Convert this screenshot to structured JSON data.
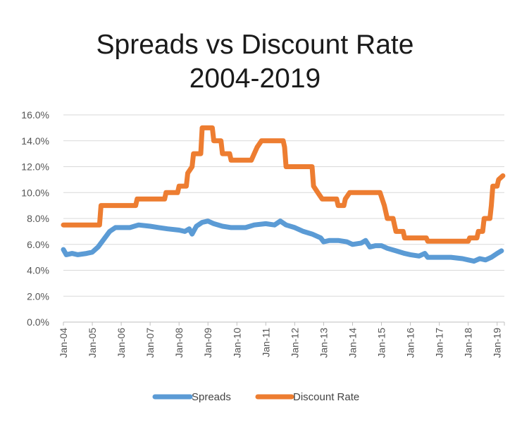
{
  "chart_data": {
    "type": "line",
    "title": "Spreads vs Discount Rate",
    "subtitle": "2004-2019",
    "xlabel": "",
    "ylabel": "",
    "xlim": [
      "2004-01",
      "2019-03"
    ],
    "ylim": [
      0,
      16
    ],
    "y_ticks": [
      "0.0%",
      "2.0%",
      "4.0%",
      "6.0%",
      "8.0%",
      "10.0%",
      "12.0%",
      "14.0%",
      "16.0%"
    ],
    "x_ticks": [
      "Jan-04",
      "Jan-05",
      "Jan-06",
      "Jan-07",
      "Jan-08",
      "Jan-09",
      "Jan-10",
      "Jan-11",
      "Jan-12",
      "Jan-13",
      "Jan-14",
      "Jan-15",
      "Jan-16",
      "Jan-17",
      "Jan-18",
      "Jan-19"
    ],
    "grid": true,
    "legend_position": "bottom",
    "series": [
      {
        "name": "Spreads",
        "color": "#5B9BD5",
        "points": [
          [
            2004.0,
            5.6
          ],
          [
            2004.1,
            5.2
          ],
          [
            2004.3,
            5.3
          ],
          [
            2004.5,
            5.2
          ],
          [
            2004.8,
            5.3
          ],
          [
            2005.0,
            5.4
          ],
          [
            2005.2,
            5.8
          ],
          [
            2005.4,
            6.4
          ],
          [
            2005.6,
            7.0
          ],
          [
            2005.8,
            7.3
          ],
          [
            2006.0,
            7.3
          ],
          [
            2006.3,
            7.3
          ],
          [
            2006.6,
            7.5
          ],
          [
            2007.0,
            7.4
          ],
          [
            2007.3,
            7.3
          ],
          [
            2007.6,
            7.2
          ],
          [
            2008.0,
            7.1
          ],
          [
            2008.2,
            7.0
          ],
          [
            2008.35,
            7.2
          ],
          [
            2008.45,
            6.8
          ],
          [
            2008.6,
            7.4
          ],
          [
            2008.8,
            7.7
          ],
          [
            2009.0,
            7.8
          ],
          [
            2009.2,
            7.6
          ],
          [
            2009.5,
            7.4
          ],
          [
            2009.8,
            7.3
          ],
          [
            2010.0,
            7.3
          ],
          [
            2010.3,
            7.3
          ],
          [
            2010.6,
            7.5
          ],
          [
            2011.0,
            7.6
          ],
          [
            2011.3,
            7.5
          ],
          [
            2011.5,
            7.8
          ],
          [
            2011.7,
            7.5
          ],
          [
            2012.0,
            7.3
          ],
          [
            2012.3,
            7.0
          ],
          [
            2012.6,
            6.8
          ],
          [
            2012.9,
            6.5
          ],
          [
            2013.0,
            6.2
          ],
          [
            2013.2,
            6.3
          ],
          [
            2013.5,
            6.3
          ],
          [
            2013.8,
            6.2
          ],
          [
            2014.0,
            6.0
          ],
          [
            2014.3,
            6.1
          ],
          [
            2014.45,
            6.3
          ],
          [
            2014.6,
            5.8
          ],
          [
            2014.8,
            5.9
          ],
          [
            2015.0,
            5.9
          ],
          [
            2015.2,
            5.7
          ],
          [
            2015.5,
            5.5
          ],
          [
            2015.8,
            5.3
          ],
          [
            2016.0,
            5.2
          ],
          [
            2016.3,
            5.1
          ],
          [
            2016.5,
            5.3
          ],
          [
            2016.6,
            5.0
          ],
          [
            2017.0,
            5.0
          ],
          [
            2017.4,
            5.0
          ],
          [
            2017.8,
            4.9
          ],
          [
            2018.0,
            4.8
          ],
          [
            2018.2,
            4.7
          ],
          [
            2018.4,
            4.9
          ],
          [
            2018.6,
            4.8
          ],
          [
            2018.8,
            5.0
          ],
          [
            2019.0,
            5.3
          ],
          [
            2019.15,
            5.5
          ]
        ]
      },
      {
        "name": "Discount Rate",
        "color": "#ED7D31",
        "points": [
          [
            2004.0,
            7.5
          ],
          [
            2005.25,
            7.5
          ],
          [
            2005.3,
            9.0
          ],
          [
            2006.5,
            9.0
          ],
          [
            2006.55,
            9.5
          ],
          [
            2007.5,
            9.5
          ],
          [
            2007.55,
            10.0
          ],
          [
            2007.95,
            10.0
          ],
          [
            2008.0,
            10.5
          ],
          [
            2008.25,
            10.5
          ],
          [
            2008.3,
            11.5
          ],
          [
            2008.45,
            12.0
          ],
          [
            2008.5,
            13.0
          ],
          [
            2008.75,
            13.0
          ],
          [
            2008.8,
            15.0
          ],
          [
            2009.15,
            15.0
          ],
          [
            2009.2,
            14.0
          ],
          [
            2009.45,
            14.0
          ],
          [
            2009.5,
            13.0
          ],
          [
            2009.75,
            13.0
          ],
          [
            2009.8,
            12.5
          ],
          [
            2010.5,
            12.5
          ],
          [
            2010.6,
            13.0
          ],
          [
            2010.7,
            13.5
          ],
          [
            2010.85,
            14.0
          ],
          [
            2011.6,
            14.0
          ],
          [
            2011.65,
            13.5
          ],
          [
            2011.7,
            12.0
          ],
          [
            2012.6,
            12.0
          ],
          [
            2012.65,
            10.5
          ],
          [
            2012.8,
            10.0
          ],
          [
            2012.95,
            9.5
          ],
          [
            2013.45,
            9.5
          ],
          [
            2013.5,
            9.0
          ],
          [
            2013.7,
            9.0
          ],
          [
            2013.75,
            9.5
          ],
          [
            2013.9,
            10.0
          ],
          [
            2014.95,
            10.0
          ],
          [
            2015.1,
            9.0
          ],
          [
            2015.2,
            8.0
          ],
          [
            2015.4,
            8.0
          ],
          [
            2015.45,
            7.5
          ],
          [
            2015.5,
            7.0
          ],
          [
            2015.75,
            7.0
          ],
          [
            2015.8,
            6.5
          ],
          [
            2016.55,
            6.5
          ],
          [
            2016.6,
            6.25
          ],
          [
            2018.0,
            6.25
          ],
          [
            2018.05,
            6.5
          ],
          [
            2018.3,
            6.5
          ],
          [
            2018.35,
            7.0
          ],
          [
            2018.5,
            7.0
          ],
          [
            2018.55,
            8.0
          ],
          [
            2018.75,
            8.0
          ],
          [
            2018.8,
            9.0
          ],
          [
            2018.85,
            10.5
          ],
          [
            2019.0,
            10.5
          ],
          [
            2019.05,
            11.0
          ],
          [
            2019.2,
            11.3
          ]
        ]
      }
    ]
  }
}
